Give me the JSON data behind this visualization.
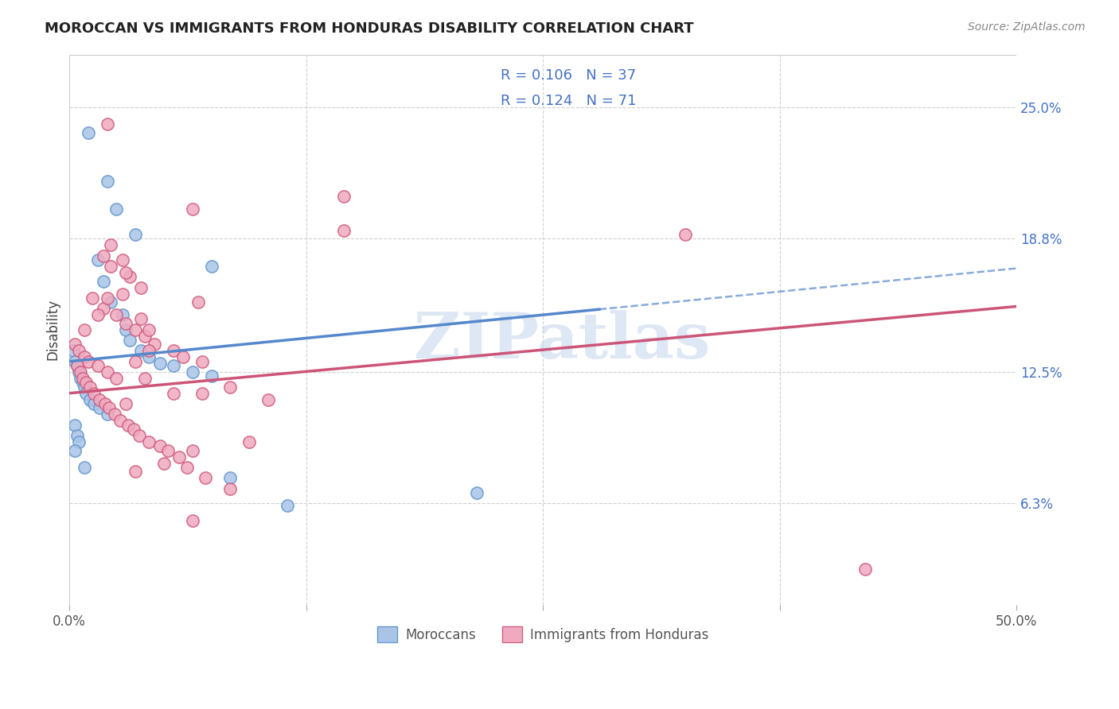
{
  "title": "MOROCCAN VS IMMIGRANTS FROM HONDURAS DISABILITY CORRELATION CHART",
  "source": "Source: ZipAtlas.com",
  "ylabel": "Disability",
  "ytick_labels": [
    "6.3%",
    "12.5%",
    "18.8%",
    "25.0%"
  ],
  "ytick_values": [
    6.3,
    12.5,
    18.8,
    25.0
  ],
  "xmin": 0.0,
  "xmax": 50.0,
  "ymin": 1.5,
  "ymax": 27.5,
  "color_moroccan_fill": "#aac4e8",
  "color_moroccan_edge": "#6699cc",
  "color_honduran_fill": "#f0aac0",
  "color_honduran_edge": "#d06080",
  "color_blue_line": "#5588cc",
  "color_pink_line": "#cc5577",
  "color_blue_text": "#4472c4",
  "watermark_color": "#c8d8ee",
  "legend_label1": "Moroccans",
  "legend_label2": "Immigrants from Honduras",
  "moroccan_x": [
    1.0,
    2.0,
    2.5,
    3.5,
    1.5,
    1.8,
    2.2,
    2.8,
    3.0,
    3.2,
    3.8,
    4.2,
    4.8,
    5.5,
    6.5,
    7.5,
    0.2,
    0.3,
    0.4,
    0.5,
    0.6,
    0.7,
    0.8,
    0.9,
    1.1,
    1.3,
    1.6,
    2.0,
    0.3,
    0.4,
    0.5,
    0.3,
    7.5,
    0.8,
    8.5,
    21.5,
    11.5
  ],
  "moroccan_y": [
    23.8,
    21.5,
    20.2,
    19.0,
    17.8,
    16.8,
    15.8,
    15.2,
    14.5,
    14.0,
    13.5,
    13.2,
    12.9,
    12.8,
    12.5,
    12.3,
    13.5,
    13.0,
    12.8,
    12.5,
    12.2,
    12.0,
    11.8,
    11.5,
    11.2,
    11.0,
    10.8,
    10.5,
    10.0,
    9.5,
    9.2,
    8.8,
    17.5,
    8.0,
    7.5,
    6.8,
    6.2
  ],
  "honduran_x": [
    6.5,
    14.5,
    2.2,
    2.8,
    3.2,
    3.8,
    1.2,
    1.8,
    2.5,
    3.0,
    3.5,
    4.0,
    4.5,
    5.5,
    6.0,
    7.0,
    0.3,
    0.5,
    0.8,
    1.0,
    1.5,
    2.0,
    2.5,
    0.4,
    0.6,
    0.7,
    0.9,
    1.1,
    1.3,
    1.6,
    1.9,
    2.1,
    2.4,
    2.7,
    3.1,
    3.4,
    3.7,
    4.2,
    4.8,
    5.2,
    5.8,
    6.2,
    7.2,
    8.5,
    9.5,
    32.5,
    8.5,
    7.0,
    10.5,
    3.0,
    5.5,
    4.0,
    3.5,
    0.8,
    1.5,
    2.0,
    3.0,
    1.8,
    6.8,
    2.2,
    2.8,
    2.0,
    3.8,
    4.2,
    6.5,
    14.5,
    4.2,
    5.0,
    3.5,
    6.5,
    42.0
  ],
  "honduran_y": [
    20.2,
    20.8,
    18.5,
    17.8,
    17.0,
    16.5,
    16.0,
    15.5,
    15.2,
    14.8,
    14.5,
    14.2,
    13.8,
    13.5,
    13.2,
    13.0,
    13.8,
    13.5,
    13.2,
    13.0,
    12.8,
    12.5,
    12.2,
    12.8,
    12.5,
    12.2,
    12.0,
    11.8,
    11.5,
    11.2,
    11.0,
    10.8,
    10.5,
    10.2,
    10.0,
    9.8,
    9.5,
    9.2,
    9.0,
    8.8,
    8.5,
    8.0,
    7.5,
    7.0,
    9.2,
    19.0,
    11.8,
    11.5,
    11.2,
    11.0,
    11.5,
    12.2,
    13.0,
    14.5,
    15.2,
    16.0,
    17.2,
    18.0,
    15.8,
    17.5,
    16.2,
    24.2,
    15.0,
    14.5,
    8.8,
    19.2,
    13.5,
    8.2,
    7.8,
    5.5,
    3.2
  ]
}
